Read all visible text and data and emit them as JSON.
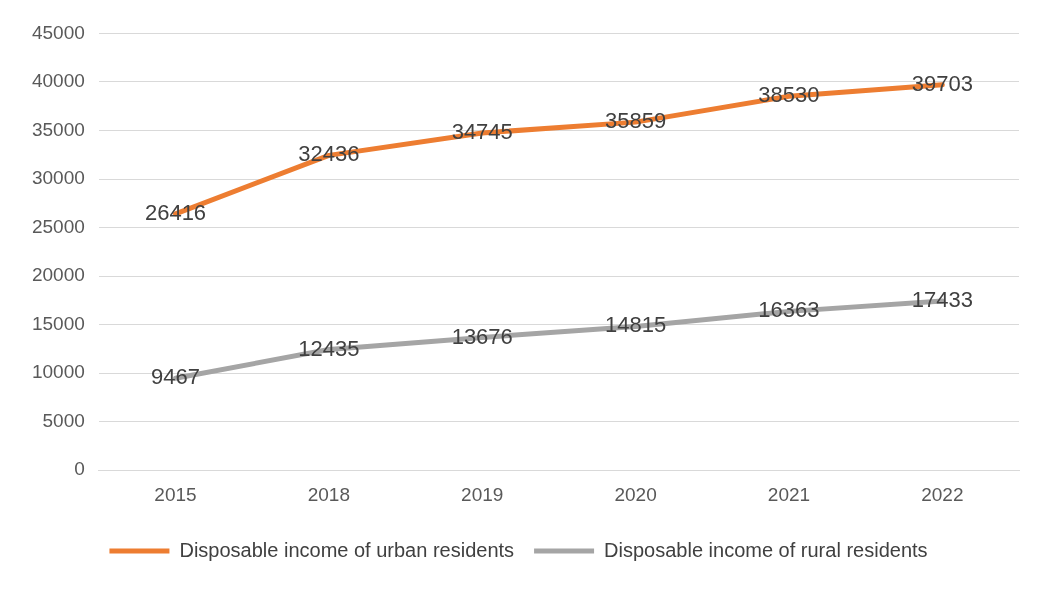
{
  "chart_data": {
    "type": "line",
    "categories": [
      "2015",
      "2018",
      "2019",
      "2020",
      "2021",
      "2022"
    ],
    "series": [
      {
        "name": "Disposable income of urban residents",
        "color": "#ed7d31",
        "values": [
          26416,
          32436,
          34745,
          35859,
          38530,
          39703
        ]
      },
      {
        "name": "Disposable income of rural residents",
        "color": "#a5a5a5",
        "values": [
          9467,
          12435,
          13676,
          14815,
          16363,
          17433
        ]
      }
    ],
    "ylim": [
      0,
      45000
    ],
    "yticks": [
      0,
      5000,
      10000,
      15000,
      20000,
      25000,
      30000,
      35000,
      40000,
      45000
    ],
    "grid": "y",
    "legend": "bottom",
    "data_labels": true,
    "marker": "none",
    "line_style": "solid"
  }
}
